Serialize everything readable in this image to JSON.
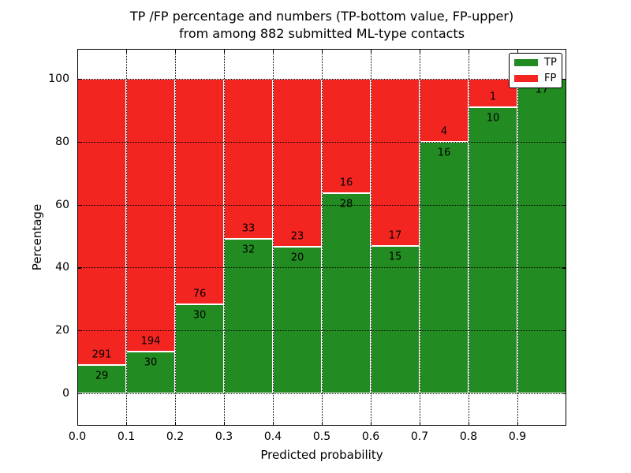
{
  "title": {
    "line1": "TP /FP percentage and numbers (TP-bottom value, FP-upper)",
    "line2": "from among 882 submitted ML-type contacts"
  },
  "axes": {
    "x_label": "Predicted probability",
    "y_label": "Percentage",
    "x_tick_labels": [
      "0.0",
      "0.1",
      "0.2",
      "0.3",
      "0.4",
      "0.5",
      "0.6",
      "0.7",
      "0.8",
      "0.9"
    ],
    "x_tick_values": [
      0.0,
      0.1,
      0.2,
      0.3,
      0.4,
      0.5,
      0.6,
      0.7,
      0.8,
      0.9
    ],
    "y_tick_labels": [
      "0",
      "20",
      "40",
      "60",
      "80",
      "100"
    ],
    "y_tick_values": [
      0,
      20,
      40,
      60,
      80,
      100
    ],
    "x_range": [
      0.0,
      1.0
    ],
    "y_visible_range": [
      -10.3,
      109.5
    ],
    "grid_style": "dotted"
  },
  "legend": {
    "position": "upper-right",
    "items": [
      {
        "label": "TP",
        "color": "#228b22"
      },
      {
        "label": "FP",
        "color": "#f32521"
      }
    ]
  },
  "chart_data": {
    "type": "bar",
    "stacked": true,
    "normalized_to_percent": 100,
    "title": "TP /FP percentage and numbers (TP-bottom value, FP-upper) from among 882 submitted ML-type contacts",
    "xlabel": "Predicted probability",
    "ylabel": "Percentage",
    "bin_edges": [
      0.0,
      0.1,
      0.2,
      0.3,
      0.4,
      0.5,
      0.6,
      0.7,
      0.8,
      0.9,
      1.0
    ],
    "categories": [
      "0.0-0.1",
      "0.1-0.2",
      "0.2-0.3",
      "0.3-0.4",
      "0.4-0.5",
      "0.5-0.6",
      "0.6-0.7",
      "0.7-0.8",
      "0.8-0.9",
      "0.9-1.0"
    ],
    "series": [
      {
        "name": "TP",
        "color": "#228b22",
        "counts": [
          29,
          30,
          30,
          32,
          20,
          28,
          15,
          16,
          10,
          17
        ]
      },
      {
        "name": "FP",
        "color": "#f32521",
        "counts": [
          291,
          194,
          76,
          33,
          23,
          16,
          17,
          4,
          1,
          0
        ]
      }
    ],
    "tp_percent_of_bin": [
      9.1,
      13.4,
      28.3,
      49.2,
      46.5,
      63.6,
      46.9,
      80.0,
      90.9,
      100.0
    ],
    "total_contacts": 882,
    "ylim_view": [
      -10.3,
      109.5
    ],
    "grid": true,
    "legend_position": "upper-right"
  }
}
